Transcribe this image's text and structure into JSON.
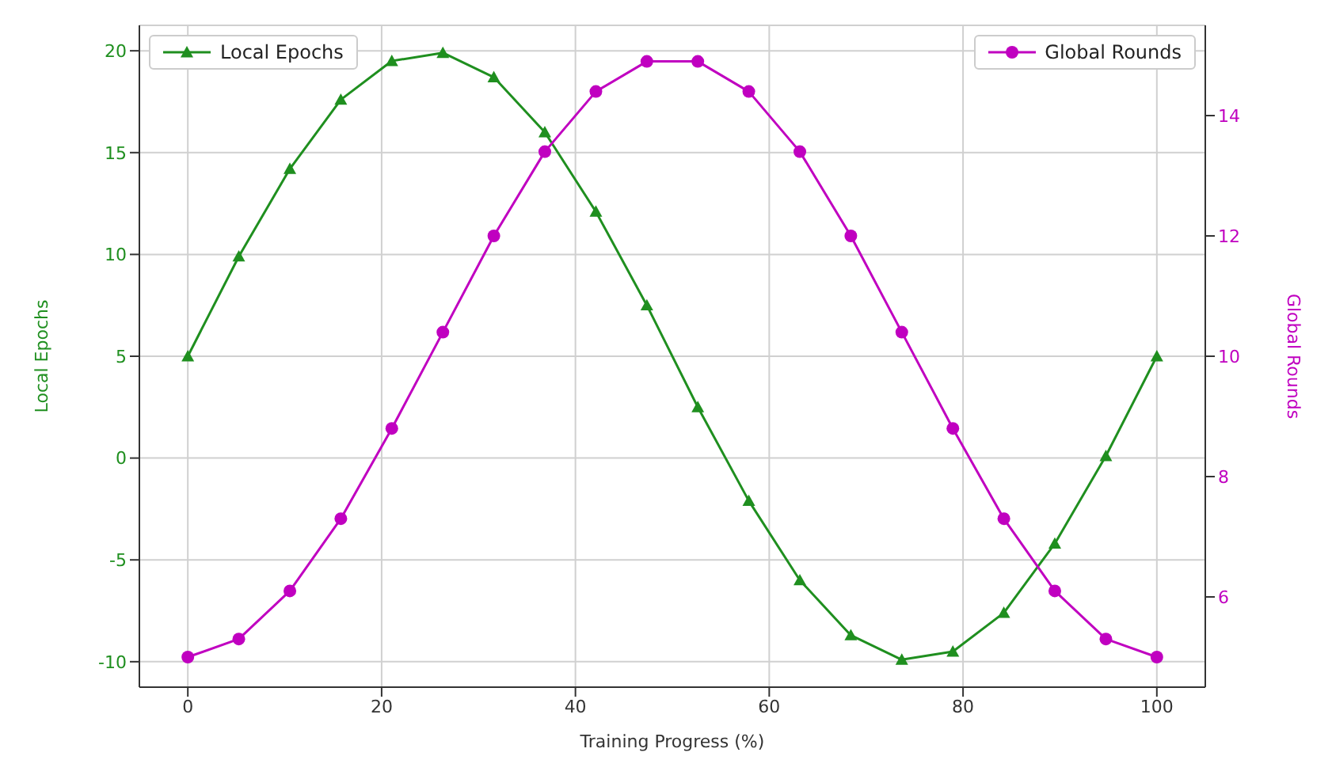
{
  "chart_data": {
    "type": "line",
    "xlabel": "Training Progress (%)",
    "ylabel": "Local Epochs",
    "y2label": "Global Rounds",
    "x": [
      0,
      5.26,
      10.53,
      15.79,
      21.05,
      26.32,
      31.58,
      36.84,
      42.11,
      47.37,
      52.63,
      57.89,
      63.16,
      68.42,
      73.68,
      78.95,
      84.21,
      89.47,
      94.74,
      100
    ],
    "series": [
      {
        "name": "Local Epochs",
        "color": "#1f8f1f",
        "marker": "triangle",
        "axis": "y",
        "values": [
          5,
          9.9,
          14.2,
          17.6,
          19.5,
          19.9,
          18.7,
          16.0,
          12.1,
          7.5,
          2.5,
          -2.1,
          -6.0,
          -8.7,
          -9.9,
          -9.5,
          -7.6,
          -4.2,
          0.1,
          5
        ]
      },
      {
        "name": "Global Rounds",
        "color": "#c000c0",
        "marker": "circle",
        "axis": "y2",
        "values": [
          5,
          5.3,
          6.1,
          7.3,
          8.8,
          10.4,
          12.0,
          13.4,
          14.4,
          14.9,
          14.9,
          14.4,
          13.4,
          12.0,
          10.4,
          8.8,
          7.3,
          6.1,
          5.3,
          5
        ]
      }
    ],
    "xlim": [
      -5,
      105
    ],
    "xticks": [
      0,
      20,
      40,
      60,
      80,
      100
    ],
    "ylim": [
      -11.25,
      21.25
    ],
    "yticks": [
      -10,
      -5,
      0,
      5,
      10,
      15,
      20
    ],
    "y2lim": [
      4.5,
      15.5
    ],
    "y2ticks": [
      6,
      8,
      10,
      12,
      14
    ],
    "grid": true,
    "legend": "top",
    "line_style": "solid"
  }
}
